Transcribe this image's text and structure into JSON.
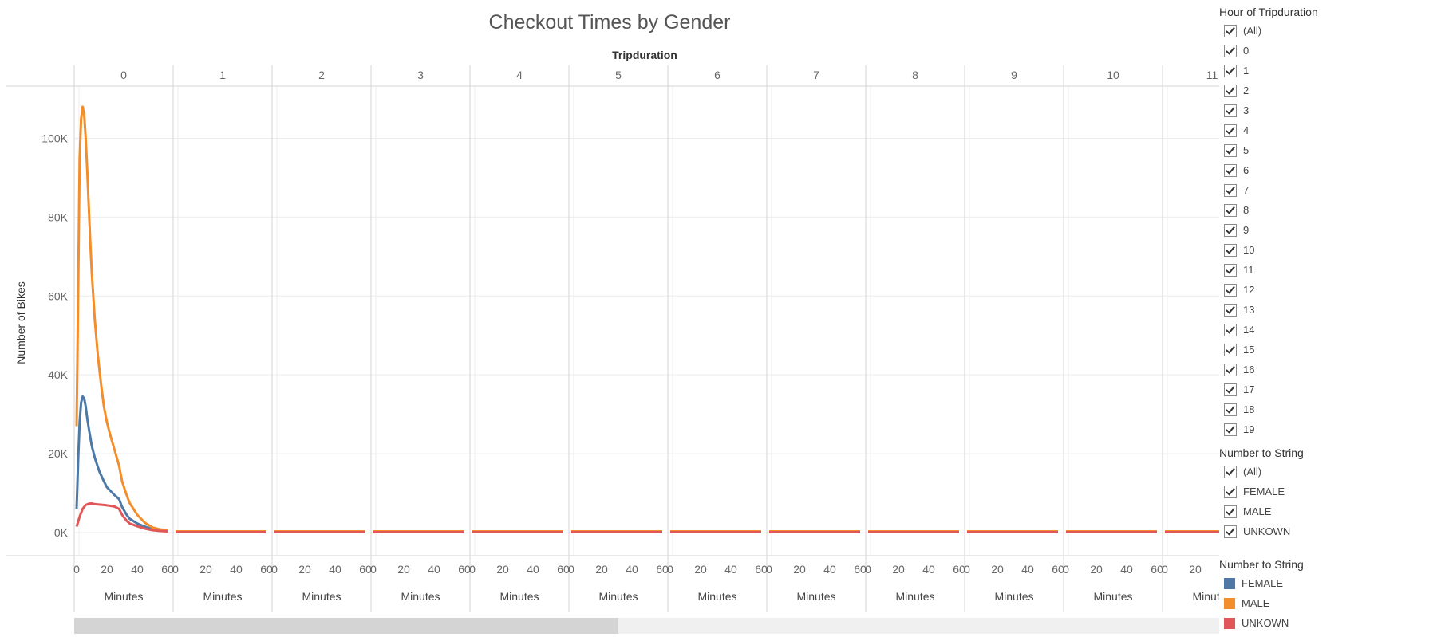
{
  "chart_data": {
    "type": "line",
    "title": "Checkout Times by Gender",
    "column_header": "Tripduration",
    "ylabel": "Number of Bikes",
    "xlabel": "Minutes",
    "ylim": [
      0,
      110000
    ],
    "y_ticks": [
      0,
      20000,
      40000,
      60000,
      80000,
      100000
    ],
    "y_tick_labels": [
      "0K",
      "20K",
      "40K",
      "60K",
      "80K",
      "100K"
    ],
    "x_ticks": [
      0,
      20,
      40,
      60
    ],
    "x_tick_labels": [
      "0",
      "20",
      "40",
      "60"
    ],
    "xlim": [
      0,
      60
    ],
    "panels": [
      "0",
      "1",
      "2",
      "3",
      "4",
      "5",
      "6",
      "7",
      "8",
      "9",
      "10",
      "11"
    ],
    "grid": true,
    "series": [
      {
        "name": "FEMALE",
        "color": "#4E79A7",
        "panel_0": {
          "x": [
            0,
            1,
            2,
            3,
            4,
            5,
            6,
            7,
            8,
            10,
            12,
            15,
            18,
            20,
            25,
            28,
            30,
            33,
            35,
            40,
            45,
            50,
            55,
            60
          ],
          "y": [
            6000,
            18000,
            28000,
            33000,
            34500,
            34000,
            32000,
            29000,
            26500,
            22000,
            19000,
            15500,
            13000,
            11500,
            9500,
            8500,
            6500,
            4500,
            3500,
            2300,
            1500,
            900,
            700,
            500
          ]
        },
        "other_panels_y": 300
      },
      {
        "name": "MALE",
        "color": "#F28E2B",
        "panel_0": {
          "x": [
            0,
            1,
            2,
            3,
            4,
            5,
            6,
            7,
            8,
            9,
            10,
            12,
            14,
            16,
            18,
            20,
            22,
            25,
            28,
            30,
            33,
            35,
            40,
            45,
            50,
            55,
            60
          ],
          "y": [
            27000,
            60000,
            95000,
            105000,
            108000,
            106000,
            100000,
            92000,
            83000,
            74000,
            66000,
            54000,
            45000,
            38000,
            32000,
            28000,
            25000,
            21000,
            17000,
            13000,
            9500,
            7500,
            4500,
            2500,
            1300,
            800,
            500
          ]
        },
        "other_panels_y": 300
      },
      {
        "name": "UNKOWN",
        "color": "#E15759",
        "panel_0": {
          "x": [
            0,
            2,
            4,
            6,
            8,
            10,
            12,
            15,
            18,
            20,
            22,
            25,
            28,
            30,
            33,
            35,
            40,
            45,
            50,
            55,
            60
          ],
          "y": [
            1500,
            4000,
            6000,
            7000,
            7300,
            7400,
            7200,
            7100,
            7000,
            6900,
            6800,
            6600,
            6000,
            4500,
            3000,
            2300,
            1600,
            1000,
            600,
            400,
            300
          ]
        },
        "other_panels_y": 100
      }
    ]
  },
  "filters": {
    "hour": {
      "title": "Hour of Tripduration",
      "items": [
        "(All)",
        "0",
        "1",
        "2",
        "3",
        "4",
        "5",
        "6",
        "7",
        "8",
        "9",
        "10",
        "11",
        "12",
        "13",
        "14",
        "15",
        "16",
        "17",
        "18",
        "19"
      ]
    },
    "gender": {
      "title": "Number to String",
      "items": [
        "(All)",
        "FEMALE",
        "MALE",
        "UNKOWN"
      ]
    }
  },
  "legend": {
    "title": "Number to String",
    "items": [
      {
        "label": "FEMALE",
        "color": "#4E79A7"
      },
      {
        "label": "MALE",
        "color": "#F28E2B"
      },
      {
        "label": "UNKOWN",
        "color": "#E15759"
      }
    ]
  }
}
